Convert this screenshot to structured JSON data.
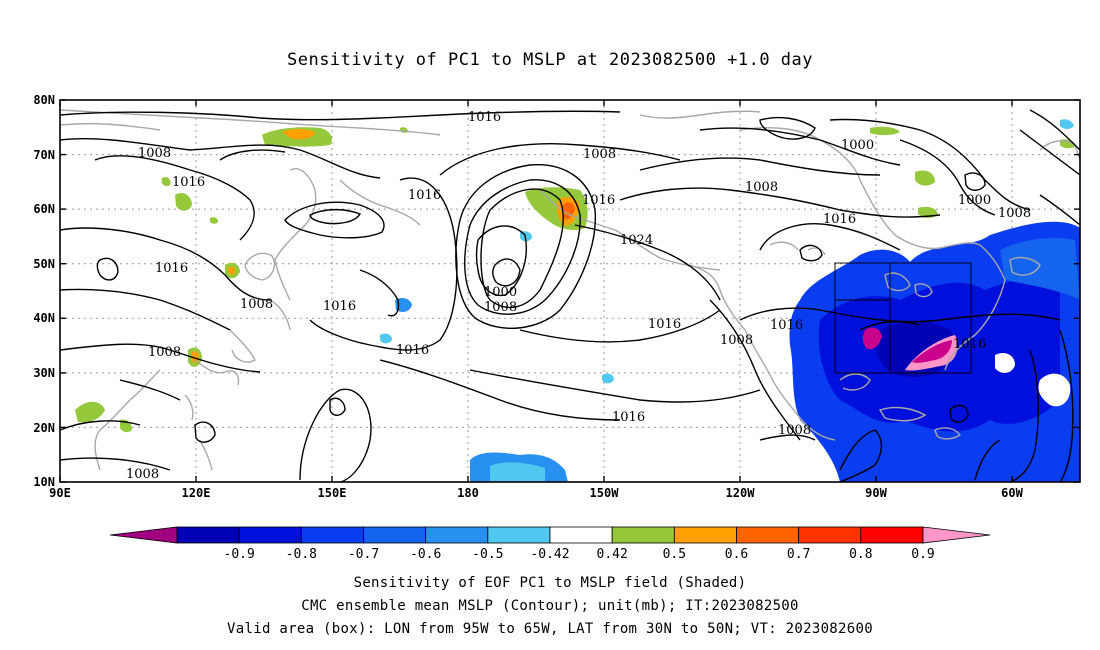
{
  "title": "Sensitivity of PC1 to MSLP at 2023082500 +1.0 day",
  "map": {
    "lat_labels": [
      "80N",
      "70N",
      "60N",
      "50N",
      "40N",
      "30N",
      "20N",
      "10N"
    ],
    "lon_labels": [
      "90E",
      "120E",
      "150E",
      "180",
      "150W",
      "120W",
      "90W",
      "60W"
    ],
    "lon_range": [
      "90E",
      "45W"
    ],
    "lat_range": [
      "10N",
      "80N"
    ],
    "grid": "dotted",
    "coastline_color": "#a8a8a8",
    "contour_color": "#000000",
    "contour_labels": [
      "1016",
      "1008",
      "1016",
      "1016",
      "1008",
      "1016",
      "1008",
      "1008",
      "1016",
      "1016",
      "1016",
      "1000",
      "1008",
      "1000",
      "1024",
      "1016",
      "1016",
      "1008",
      "1016",
      "1008",
      "1008",
      "1016",
      "1016",
      "1000",
      "1008"
    ],
    "valid_box": {
      "lon_from": "95W",
      "lon_to": "65W",
      "lat_from": "30N",
      "lat_to": "50N"
    }
  },
  "colorbar": {
    "labels": [
      "-0.9",
      "-0.8",
      "-0.7",
      "-0.6",
      "-0.5",
      "-0.42",
      "0.42",
      "0.5",
      "0.6",
      "0.7",
      "0.8",
      "0.9"
    ],
    "colors": [
      "#a0007f",
      "#0000b4",
      "#0010dc",
      "#0a3cf0",
      "#1464f0",
      "#2890f0",
      "#50c8f0",
      "#ffffff",
      "#96c83c",
      "#ffa000",
      "#ff6400",
      "#ff3200",
      "#ff0000",
      "#ff96c8"
    ]
  },
  "captions": {
    "line1": "Sensitivity of EOF PC1 to MSLP field (Shaded)",
    "line2": "CMC ensemble mean MSLP (Contour); unit(mb); IT:2023082500",
    "line3": "Valid area (box): LON from 95W to 65W, LAT from 30N to 50N; VT: 2023082600"
  }
}
